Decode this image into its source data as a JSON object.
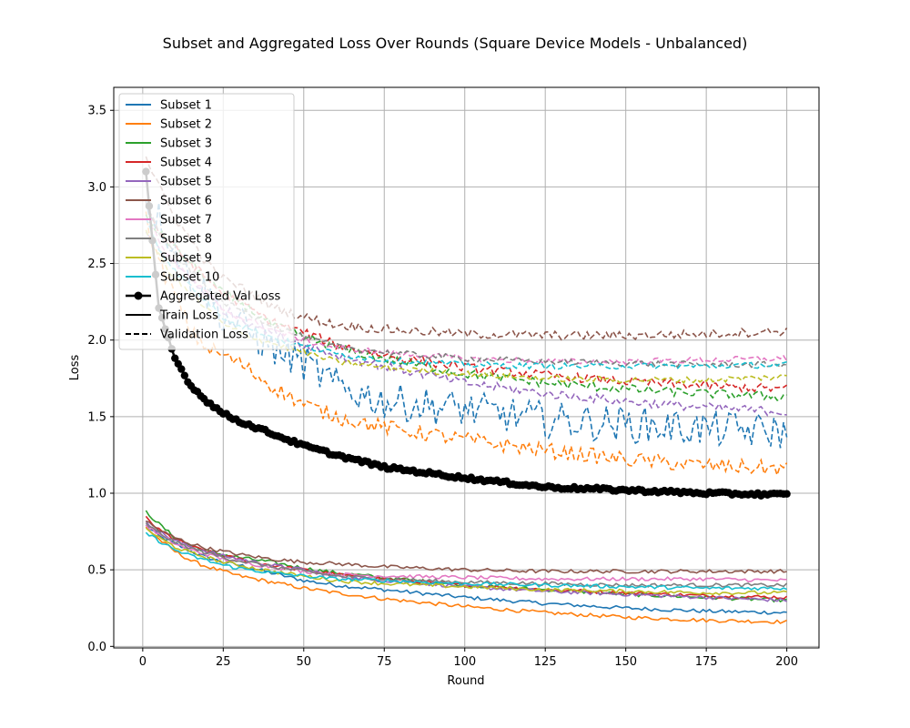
{
  "chart_data": {
    "type": "line",
    "title": "Subset and Aggregated Loss Over Rounds (Square Device Models - Unbalanced)",
    "xlabel": "Round",
    "ylabel": "Loss",
    "xlim": [
      -9,
      210
    ],
    "ylim": [
      -0.01,
      3.65
    ],
    "xticks": [
      0,
      25,
      50,
      75,
      100,
      125,
      150,
      175,
      200
    ],
    "yticks": [
      0.0,
      0.5,
      1.0,
      1.5,
      2.0,
      2.5,
      3.0,
      3.5
    ],
    "grid": true,
    "legend_position": "upper-left",
    "rounds": [
      1,
      200
    ],
    "sampled_x": [
      1,
      5,
      10,
      15,
      20,
      25,
      30,
      40,
      50,
      60,
      75,
      100,
      125,
      150,
      175,
      200
    ],
    "subsets": [
      {
        "name": "Subset 1",
        "color": "#1f77b4",
        "noise": 0.12,
        "train": [
          0.79,
          0.72,
          0.67,
          0.62,
          0.58,
          0.55,
          0.53,
          0.48,
          0.43,
          0.4,
          0.37,
          0.32,
          0.28,
          0.25,
          0.23,
          0.22
        ],
        "val": [
          2.9,
          2.8,
          2.6,
          2.4,
          2.3,
          2.15,
          2.1,
          1.95,
          1.85,
          1.7,
          1.6,
          1.55,
          1.48,
          1.45,
          1.42,
          1.4
        ]
      },
      {
        "name": "Subset 2",
        "color": "#ff7f0e",
        "noise": 0.05,
        "train": [
          0.78,
          0.7,
          0.62,
          0.56,
          0.52,
          0.49,
          0.46,
          0.42,
          0.38,
          0.35,
          0.31,
          0.26,
          0.22,
          0.19,
          0.17,
          0.16
        ],
        "val": [
          2.8,
          2.5,
          2.3,
          2.05,
          1.95,
          1.9,
          1.85,
          1.7,
          1.58,
          1.5,
          1.43,
          1.35,
          1.28,
          1.22,
          1.18,
          1.16
        ]
      },
      {
        "name": "Subset 3",
        "color": "#2ca02c",
        "noise": 0.03,
        "train": [
          0.88,
          0.8,
          0.71,
          0.66,
          0.62,
          0.6,
          0.58,
          0.55,
          0.51,
          0.48,
          0.45,
          0.4,
          0.37,
          0.34,
          0.32,
          0.3
        ],
        "val": [
          2.8,
          2.7,
          2.6,
          2.5,
          2.4,
          2.3,
          2.25,
          2.1,
          2.02,
          1.95,
          1.88,
          1.78,
          1.72,
          1.68,
          1.65,
          1.63
        ]
      },
      {
        "name": "Subset 4",
        "color": "#d62728",
        "noise": 0.03,
        "train": [
          0.84,
          0.76,
          0.7,
          0.65,
          0.62,
          0.59,
          0.57,
          0.53,
          0.5,
          0.47,
          0.44,
          0.4,
          0.37,
          0.35,
          0.33,
          0.32
        ],
        "val": [
          2.9,
          2.7,
          2.6,
          2.5,
          2.4,
          2.3,
          2.25,
          2.12,
          2.05,
          1.97,
          1.9,
          1.82,
          1.77,
          1.73,
          1.7,
          1.68
        ]
      },
      {
        "name": "Subset 5",
        "color": "#9467bd",
        "noise": 0.03,
        "train": [
          0.81,
          0.75,
          0.69,
          0.65,
          0.62,
          0.59,
          0.57,
          0.53,
          0.5,
          0.46,
          0.43,
          0.39,
          0.36,
          0.34,
          0.32,
          0.3
        ],
        "val": [
          2.7,
          2.6,
          2.5,
          2.4,
          2.3,
          2.2,
          2.15,
          2.05,
          1.97,
          1.9,
          1.83,
          1.72,
          1.65,
          1.6,
          1.56,
          1.53
        ]
      },
      {
        "name": "Subset 6",
        "color": "#8c564b",
        "noise": 0.03,
        "train": [
          0.82,
          0.76,
          0.71,
          0.67,
          0.64,
          0.62,
          0.6,
          0.57,
          0.55,
          0.54,
          0.52,
          0.5,
          0.49,
          0.49,
          0.49,
          0.49
        ],
        "val": [
          3.2,
          3.0,
          2.8,
          2.65,
          2.5,
          2.4,
          2.35,
          2.22,
          2.15,
          2.1,
          2.07,
          2.04,
          2.03,
          2.03,
          2.04,
          2.06
        ]
      },
      {
        "name": "Subset 7",
        "color": "#e377c2",
        "noise": 0.02,
        "train": [
          0.79,
          0.73,
          0.67,
          0.63,
          0.6,
          0.57,
          0.55,
          0.52,
          0.49,
          0.47,
          0.46,
          0.45,
          0.44,
          0.44,
          0.44,
          0.43
        ],
        "val": [
          2.8,
          2.65,
          2.5,
          2.4,
          2.3,
          2.2,
          2.15,
          2.07,
          2.0,
          1.95,
          1.92,
          1.88,
          1.86,
          1.86,
          1.87,
          1.88
        ]
      },
      {
        "name": "Subset 8",
        "color": "#7f7f7f",
        "noise": 0.02,
        "train": [
          0.8,
          0.74,
          0.68,
          0.64,
          0.61,
          0.58,
          0.56,
          0.52,
          0.49,
          0.46,
          0.44,
          0.42,
          0.41,
          0.4,
          0.4,
          0.4
        ],
        "val": [
          2.9,
          2.7,
          2.55,
          2.45,
          2.35,
          2.25,
          2.2,
          2.1,
          2.02,
          1.96,
          1.92,
          1.88,
          1.86,
          1.85,
          1.84,
          1.84
        ]
      },
      {
        "name": "Subset 9",
        "color": "#bcbd22",
        "noise": 0.02,
        "train": [
          0.77,
          0.71,
          0.65,
          0.61,
          0.58,
          0.55,
          0.53,
          0.49,
          0.46,
          0.43,
          0.41,
          0.39,
          0.37,
          0.36,
          0.35,
          0.35
        ],
        "val": [
          2.7,
          2.55,
          2.4,
          2.3,
          2.2,
          2.1,
          2.05,
          1.98,
          1.92,
          1.86,
          1.82,
          1.78,
          1.75,
          1.74,
          1.74,
          1.76
        ]
      },
      {
        "name": "Subset 10",
        "color": "#17becf",
        "noise": 0.02,
        "train": [
          0.74,
          0.69,
          0.63,
          0.59,
          0.56,
          0.53,
          0.51,
          0.48,
          0.46,
          0.44,
          0.43,
          0.41,
          0.4,
          0.39,
          0.38,
          0.38
        ],
        "val": [
          2.8,
          2.6,
          2.45,
          2.35,
          2.25,
          2.15,
          2.1,
          2.02,
          1.96,
          1.91,
          1.87,
          1.84,
          1.83,
          1.83,
          1.83,
          1.84
        ]
      }
    ],
    "aggregated": {
      "name": "Aggregated Val Loss",
      "color": "#000000",
      "val": [
        3.1,
        2.2,
        1.88,
        1.7,
        1.6,
        1.52,
        1.47,
        1.39,
        1.31,
        1.25,
        1.17,
        1.1,
        1.04,
        1.02,
        1.0,
        0.99
      ]
    },
    "legend": {
      "train_label": "Train Loss",
      "val_label": "Validation Loss"
    }
  }
}
